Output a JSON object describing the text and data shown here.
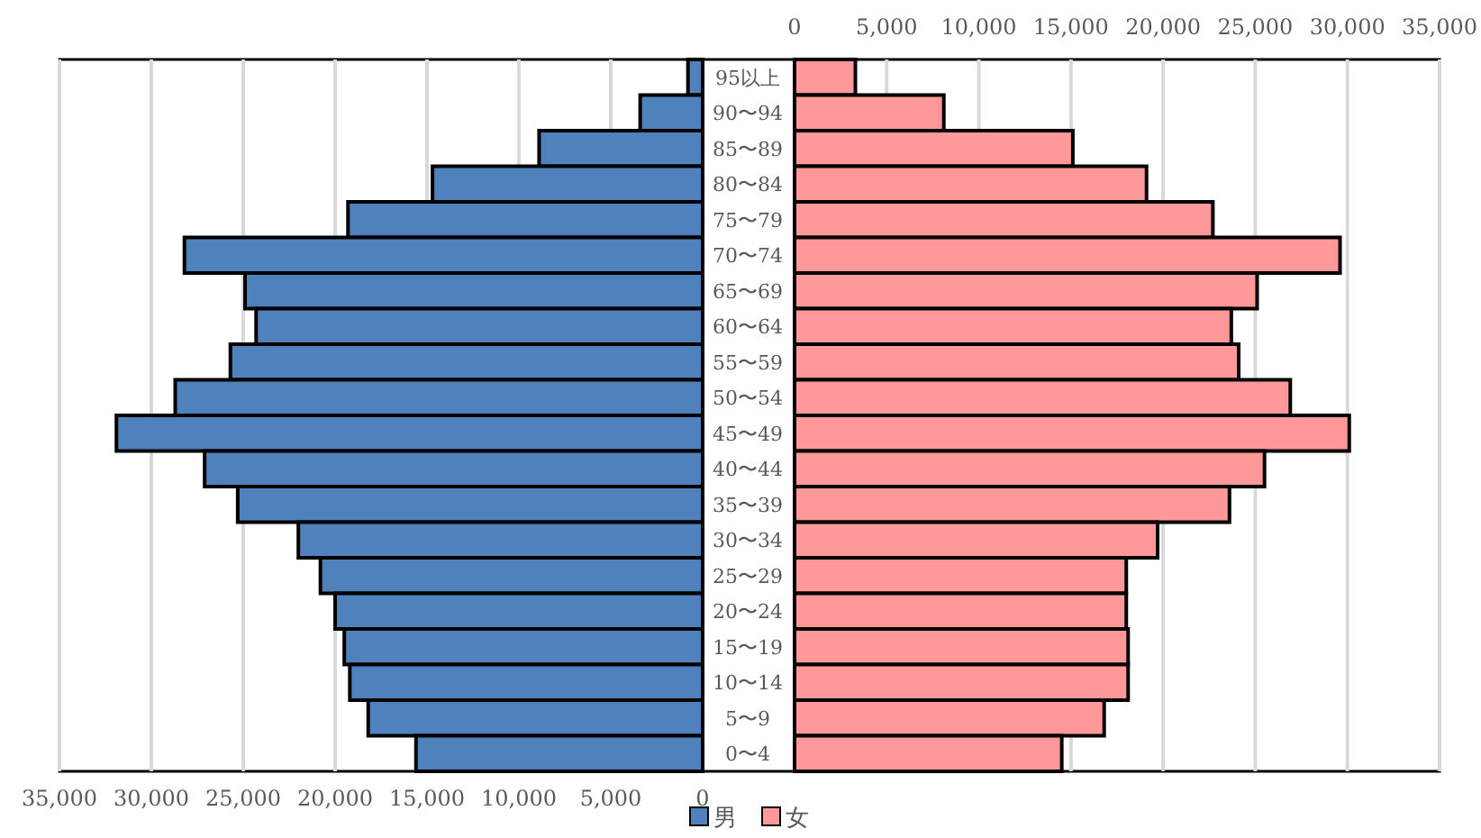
{
  "chart_data": [
    {
      "type": "bar",
      "orientation": "horizontal",
      "grid": "x",
      "legend": "bottom",
      "categories": [
        "95以上",
        "90〜94",
        "85〜89",
        "80〜84",
        "75〜79",
        "70〜74",
        "65〜69",
        "60〜64",
        "55〜59",
        "50〜54",
        "45〜49",
        "40〜44",
        "35〜39",
        "30〜34",
        "25〜29",
        "20〜24",
        "15〜19",
        "10〜14",
        "5〜9",
        "0〜4"
      ],
      "xlim": [
        35000,
        0
      ],
      "xticks": [
        {
          "value": 35000,
          "label": "35,000"
        },
        {
          "value": 30000,
          "label": "30,000"
        },
        {
          "value": 25000,
          "label": "25,000"
        },
        {
          "value": 20000,
          "label": "20,000"
        },
        {
          "value": 15000,
          "label": "15,000"
        },
        {
          "value": 10000,
          "label": "10,000"
        },
        {
          "value": 5000,
          "label": "5,000"
        },
        0
      ],
      "series": [
        {
          "name": "男",
          "color": "#4f81bd",
          "values": [
            800,
            3400,
            8900,
            14700,
            19300,
            28200,
            24900,
            24300,
            25700,
            28700,
            31900,
            27100,
            25300,
            22000,
            20800,
            20000,
            19500,
            19200,
            18200,
            15600
          ]
        }
      ]
    },
    {
      "type": "bar",
      "orientation": "horizontal",
      "tick_labels": "x",
      "grid": "x",
      "legend": "bottom",
      "categories": [
        null,
        null,
        null,
        null,
        null,
        null,
        null,
        null,
        null,
        null,
        null,
        null,
        null,
        null,
        null,
        null,
        null,
        null,
        null,
        null
      ],
      "xlim": [
        0,
        35000
      ],
      "xticks": [
        0,
        {
          "value": 5000,
          "label": "5,000"
        },
        {
          "value": 10000,
          "label": "10,000"
        },
        {
          "value": 15000,
          "label": "15,000"
        },
        {
          "value": 20000,
          "label": "20,000"
        },
        {
          "value": 25000,
          "label": "25,000"
        },
        {
          "value": 30000,
          "label": "30,000"
        },
        {
          "value": 35000,
          "label": "35,000"
        }
      ],
      "series": [
        {
          "name": "女",
          "color": "#ff9999",
          "values": [
            3300,
            8100,
            15100,
            19100,
            22700,
            29600,
            25100,
            23700,
            24100,
            26900,
            30100,
            25500,
            23600,
            19700,
            18000,
            18000,
            18100,
            18100,
            16800,
            14500
          ]
        }
      ]
    }
  ]
}
